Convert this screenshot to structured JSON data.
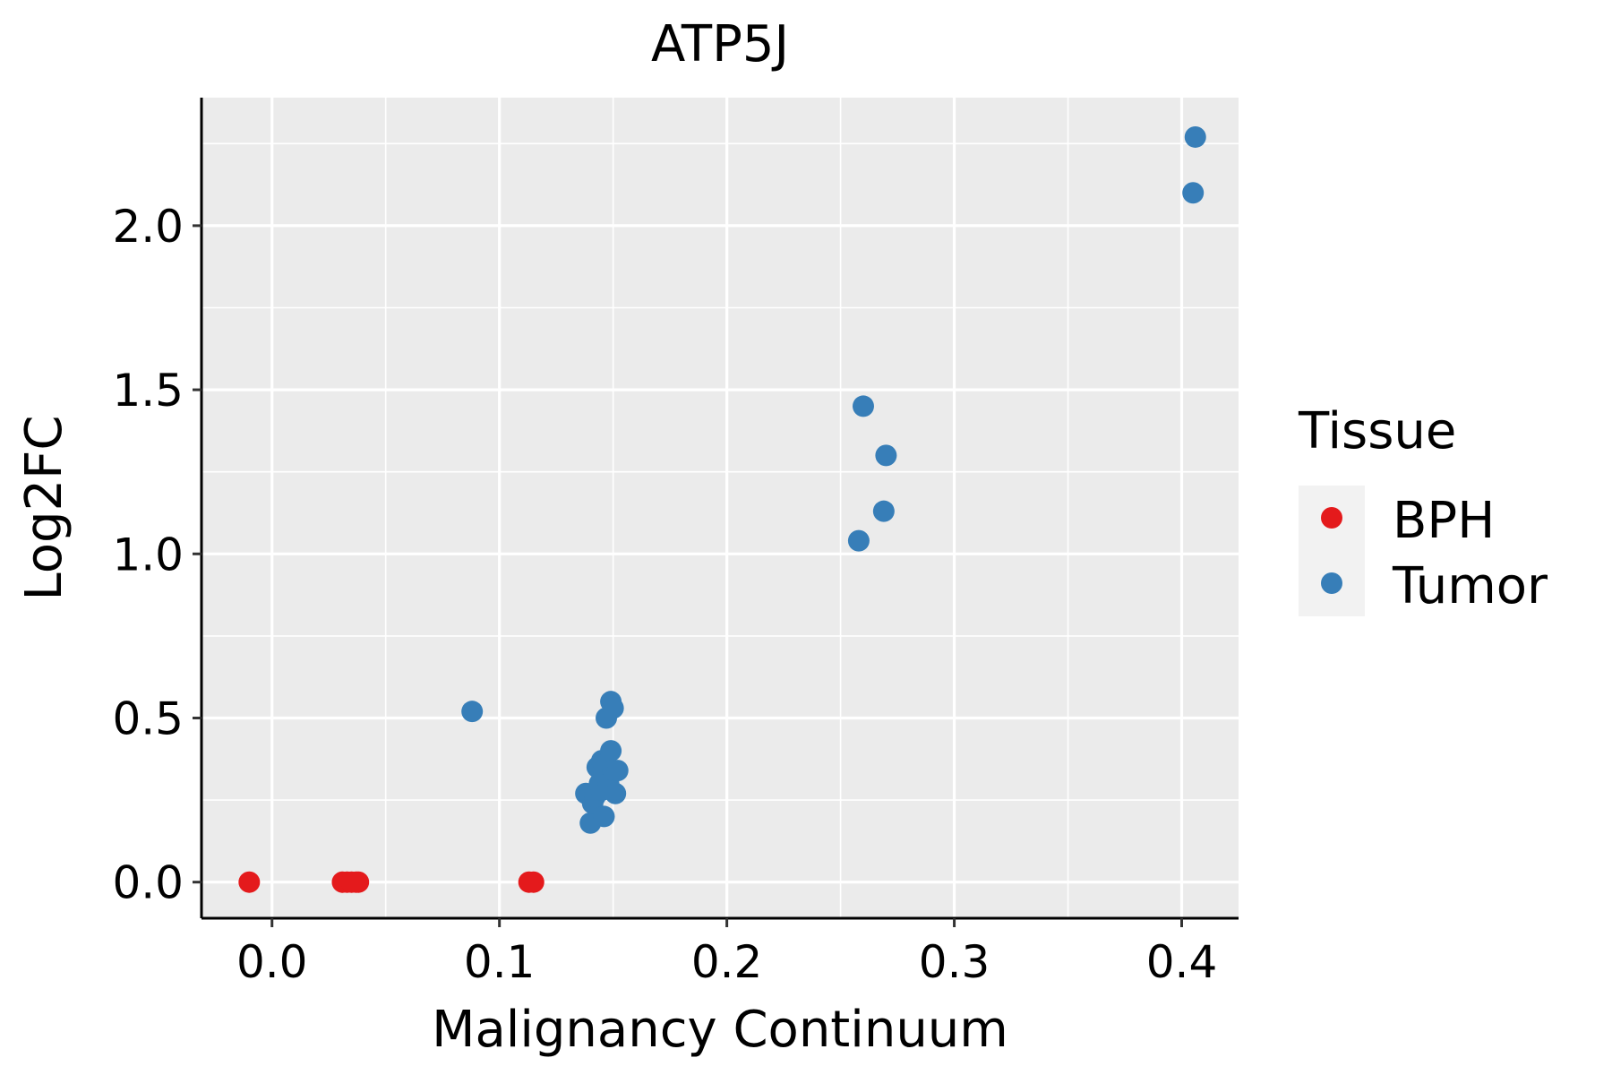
{
  "chart_data": {
    "type": "scatter",
    "title": "ATP5J",
    "xlabel": "Malignancy Continuum",
    "ylabel": "Log2FC",
    "xlim": [
      -0.031,
      0.425
    ],
    "ylim": [
      -0.11,
      2.39
    ],
    "x_ticks": [
      0.0,
      0.1,
      0.2,
      0.3,
      0.4
    ],
    "x_tick_labels": [
      "0.0",
      "0.1",
      "0.2",
      "0.3",
      "0.4"
    ],
    "y_ticks": [
      0.0,
      0.5,
      1.0,
      1.5,
      2.0
    ],
    "y_tick_labels": [
      "0.0",
      "0.5",
      "1.0",
      "1.5",
      "2.0"
    ],
    "grid": true,
    "legend": {
      "title": "Tissue",
      "position": "right",
      "entries": [
        {
          "label": "BPH",
          "color": "#E41A1C"
        },
        {
          "label": "Tumor",
          "color": "#377EB8"
        }
      ]
    },
    "series": [
      {
        "name": "BPH",
        "color": "#E41A1C",
        "points": [
          {
            "x": -0.01,
            "y": 0.0
          },
          {
            "x": 0.031,
            "y": 0.0
          },
          {
            "x": 0.033,
            "y": 0.0
          },
          {
            "x": 0.035,
            "y": 0.0
          },
          {
            "x": 0.037,
            "y": 0.0
          },
          {
            "x": 0.038,
            "y": 0.0
          },
          {
            "x": 0.113,
            "y": 0.0
          },
          {
            "x": 0.115,
            "y": 0.0
          }
        ]
      },
      {
        "name": "Tumor",
        "color": "#377EB8",
        "points": [
          {
            "x": 0.088,
            "y": 0.52
          },
          {
            "x": 0.138,
            "y": 0.27
          },
          {
            "x": 0.14,
            "y": 0.18
          },
          {
            "x": 0.141,
            "y": 0.24
          },
          {
            "x": 0.142,
            "y": 0.26
          },
          {
            "x": 0.143,
            "y": 0.35
          },
          {
            "x": 0.144,
            "y": 0.3
          },
          {
            "x": 0.145,
            "y": 0.28
          },
          {
            "x": 0.145,
            "y": 0.37
          },
          {
            "x": 0.146,
            "y": 0.33
          },
          {
            "x": 0.146,
            "y": 0.2
          },
          {
            "x": 0.147,
            "y": 0.5
          },
          {
            "x": 0.147,
            "y": 0.36
          },
          {
            "x": 0.148,
            "y": 0.3
          },
          {
            "x": 0.149,
            "y": 0.55
          },
          {
            "x": 0.149,
            "y": 0.4
          },
          {
            "x": 0.15,
            "y": 0.53
          },
          {
            "x": 0.15,
            "y": 0.34
          },
          {
            "x": 0.151,
            "y": 0.27
          },
          {
            "x": 0.152,
            "y": 0.34
          },
          {
            "x": 0.258,
            "y": 1.04
          },
          {
            "x": 0.26,
            "y": 1.45
          },
          {
            "x": 0.269,
            "y": 1.13
          },
          {
            "x": 0.27,
            "y": 1.3
          },
          {
            "x": 0.405,
            "y": 2.1
          },
          {
            "x": 0.406,
            "y": 2.27
          }
        ]
      }
    ]
  }
}
